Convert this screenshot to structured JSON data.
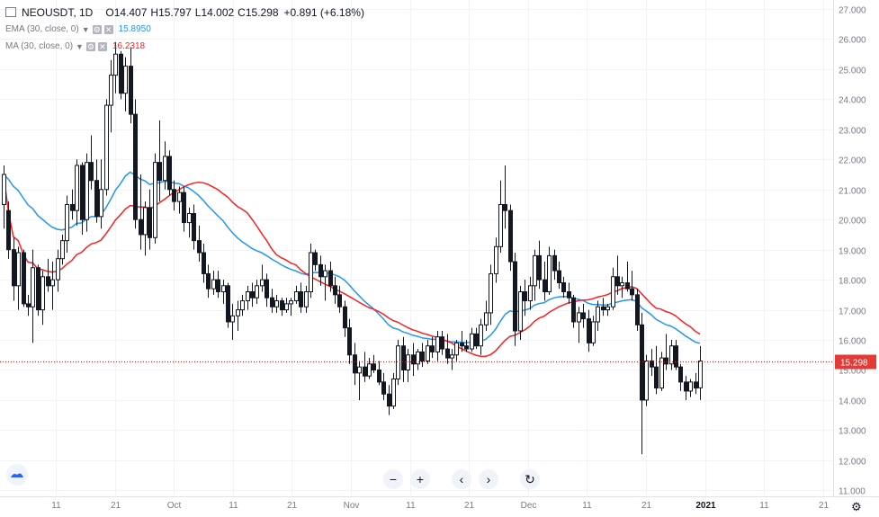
{
  "legend": {
    "symbol": "NEOUSDT, 1D",
    "open_label": "O",
    "open": "14.407",
    "high_label": "H",
    "high": "15.797",
    "low_label": "L",
    "low": "14.002",
    "close_label": "C",
    "close": "15.298",
    "change": "+0.891 (+6.18%)",
    "ema_label": "EMA (30, close, 0)",
    "ema_value": "15.8950",
    "ma_label": "MA (30, close, 0)",
    "ma_value": "16.2318"
  },
  "colors": {
    "ema": "#2196f3",
    "ma": "#ff1e1e",
    "price_line": "#e01010",
    "candle": "#131722",
    "grid": "#f0f3fa",
    "axis_text": "#787b86"
  },
  "price_label": "15.298",
  "nav_icons": [
    "minus-icon",
    "plus-icon",
    "chevron-left-icon",
    "chevron-right-icon",
    "reset-icon"
  ],
  "chart_data": {
    "type": "candlestick",
    "symbol": "NEOUSDT",
    "interval": "1D",
    "y_ticks": [
      "27.000",
      "26.000",
      "25.000",
      "24.000",
      "23.000",
      "22.000",
      "21.000",
      "20.000",
      "19.000",
      "18.000",
      "17.000",
      "16.000",
      "15.000",
      "14.000",
      "13.000",
      "12.000",
      "11.000"
    ],
    "ylim": [
      10.8,
      27.3
    ],
    "x_ticks": [
      "11",
      "21",
      "Oct",
      "11",
      "21",
      "Nov",
      "11",
      "21",
      "Dec",
      "11",
      "21",
      "2021",
      "11",
      "21"
    ],
    "last_price": 15.298,
    "grid": true,
    "candles": [
      {
        "o": 20.5,
        "h": 21.8,
        "l": 19.7,
        "c": 21.5
      },
      {
        "o": 20.3,
        "h": 20.6,
        "l": 18.7,
        "c": 19.0
      },
      {
        "o": 19.0,
        "h": 19.4,
        "l": 17.3,
        "c": 17.8
      },
      {
        "o": 17.8,
        "h": 19.1,
        "l": 17.0,
        "c": 18.9
      },
      {
        "o": 18.9,
        "h": 19.0,
        "l": 17.1,
        "c": 17.2
      },
      {
        "o": 17.2,
        "h": 17.5,
        "l": 16.8,
        "c": 17.1
      },
      {
        "o": 17.1,
        "h": 19.0,
        "l": 15.9,
        "c": 18.4
      },
      {
        "o": 18.4,
        "h": 18.5,
        "l": 16.8,
        "c": 17.0
      },
      {
        "o": 17.0,
        "h": 18.3,
        "l": 16.5,
        "c": 18.1
      },
      {
        "o": 18.1,
        "h": 18.7,
        "l": 17.6,
        "c": 17.8
      },
      {
        "o": 17.8,
        "h": 18.6,
        "l": 17.0,
        "c": 18.0
      },
      {
        "o": 18.0,
        "h": 19.0,
        "l": 17.6,
        "c": 18.7
      },
      {
        "o": 18.7,
        "h": 19.5,
        "l": 18.5,
        "c": 19.3
      },
      {
        "o": 19.3,
        "h": 20.8,
        "l": 18.9,
        "c": 20.5
      },
      {
        "o": 20.5,
        "h": 21.0,
        "l": 20.0,
        "c": 20.3
      },
      {
        "o": 20.3,
        "h": 22.0,
        "l": 19.8,
        "c": 21.8
      },
      {
        "o": 21.8,
        "h": 21.9,
        "l": 19.5,
        "c": 20.0
      },
      {
        "o": 20.0,
        "h": 22.2,
        "l": 19.6,
        "c": 21.9
      },
      {
        "o": 21.9,
        "h": 22.8,
        "l": 21.0,
        "c": 21.3
      },
      {
        "o": 21.3,
        "h": 22.0,
        "l": 19.9,
        "c": 20.1
      },
      {
        "o": 20.1,
        "h": 22.0,
        "l": 19.7,
        "c": 21.0
      },
      {
        "o": 21.0,
        "h": 24.0,
        "l": 20.8,
        "c": 23.8
      },
      {
        "o": 23.8,
        "h": 25.3,
        "l": 22.9,
        "c": 24.8
      },
      {
        "o": 24.8,
        "h": 25.9,
        "l": 24.2,
        "c": 25.5
      },
      {
        "o": 25.5,
        "h": 25.6,
        "l": 24.0,
        "c": 24.2
      },
      {
        "o": 24.2,
        "h": 25.4,
        "l": 23.6,
        "c": 25.1
      },
      {
        "o": 25.1,
        "h": 25.7,
        "l": 23.2,
        "c": 23.5
      },
      {
        "o": 23.5,
        "h": 24.0,
        "l": 19.7,
        "c": 20.0
      },
      {
        "o": 20.0,
        "h": 21.5,
        "l": 19.0,
        "c": 19.5
      },
      {
        "o": 19.5,
        "h": 20.6,
        "l": 18.8,
        "c": 20.4
      },
      {
        "o": 20.4,
        "h": 21.0,
        "l": 19.0,
        "c": 19.4
      },
      {
        "o": 19.4,
        "h": 22.2,
        "l": 19.2,
        "c": 21.9
      },
      {
        "o": 21.9,
        "h": 23.3,
        "l": 20.6,
        "c": 21.3
      },
      {
        "o": 21.3,
        "h": 22.6,
        "l": 21.0,
        "c": 22.1
      },
      {
        "o": 22.1,
        "h": 22.3,
        "l": 20.8,
        "c": 21.0
      },
      {
        "o": 21.0,
        "h": 21.3,
        "l": 20.3,
        "c": 20.6
      },
      {
        "o": 20.6,
        "h": 21.1,
        "l": 20.2,
        "c": 20.9
      },
      {
        "o": 20.9,
        "h": 21.1,
        "l": 19.6,
        "c": 19.9
      },
      {
        "o": 19.9,
        "h": 20.4,
        "l": 19.4,
        "c": 20.2
      },
      {
        "o": 20.2,
        "h": 20.5,
        "l": 19.0,
        "c": 19.3
      },
      {
        "o": 19.3,
        "h": 19.8,
        "l": 18.6,
        "c": 18.9
      },
      {
        "o": 18.9,
        "h": 19.2,
        "l": 17.9,
        "c": 18.2
      },
      {
        "o": 18.2,
        "h": 18.5,
        "l": 17.4,
        "c": 17.7
      },
      {
        "o": 17.7,
        "h": 18.3,
        "l": 17.5,
        "c": 18.0
      },
      {
        "o": 18.0,
        "h": 18.3,
        "l": 17.4,
        "c": 17.6
      },
      {
        "o": 17.6,
        "h": 18.0,
        "l": 17.2,
        "c": 17.8
      },
      {
        "o": 17.8,
        "h": 17.9,
        "l": 16.4,
        "c": 16.6
      },
      {
        "o": 16.6,
        "h": 17.2,
        "l": 16.0,
        "c": 16.8
      },
      {
        "o": 16.8,
        "h": 17.3,
        "l": 16.3,
        "c": 17.0
      },
      {
        "o": 17.0,
        "h": 17.5,
        "l": 16.8,
        "c": 17.3
      },
      {
        "o": 17.3,
        "h": 17.8,
        "l": 17.0,
        "c": 17.6
      },
      {
        "o": 17.6,
        "h": 17.9,
        "l": 17.1,
        "c": 17.4
      },
      {
        "o": 17.4,
        "h": 18.0,
        "l": 17.2,
        "c": 17.8
      },
      {
        "o": 17.8,
        "h": 18.5,
        "l": 17.6,
        "c": 18.0
      },
      {
        "o": 18.0,
        "h": 18.2,
        "l": 17.1,
        "c": 17.4
      },
      {
        "o": 17.4,
        "h": 17.7,
        "l": 16.9,
        "c": 17.1
      },
      {
        "o": 17.1,
        "h": 17.5,
        "l": 16.9,
        "c": 17.3
      },
      {
        "o": 17.3,
        "h": 17.4,
        "l": 16.8,
        "c": 17.0
      },
      {
        "o": 17.0,
        "h": 17.4,
        "l": 16.9,
        "c": 17.2
      },
      {
        "o": 17.2,
        "h": 17.4,
        "l": 16.8,
        "c": 17.3
      },
      {
        "o": 17.3,
        "h": 17.8,
        "l": 17.2,
        "c": 17.6
      },
      {
        "o": 17.6,
        "h": 17.9,
        "l": 16.9,
        "c": 17.1
      },
      {
        "o": 17.1,
        "h": 17.8,
        "l": 16.9,
        "c": 17.6
      },
      {
        "o": 17.6,
        "h": 19.2,
        "l": 17.4,
        "c": 18.9
      },
      {
        "o": 18.9,
        "h": 19.0,
        "l": 18.3,
        "c": 18.5
      },
      {
        "o": 18.5,
        "h": 18.8,
        "l": 17.8,
        "c": 18.1
      },
      {
        "o": 18.1,
        "h": 18.5,
        "l": 17.3,
        "c": 18.3
      },
      {
        "o": 18.3,
        "h": 18.6,
        "l": 17.6,
        "c": 17.8
      },
      {
        "o": 17.8,
        "h": 18.1,
        "l": 17.2,
        "c": 17.5
      },
      {
        "o": 17.5,
        "h": 17.8,
        "l": 16.9,
        "c": 17.1
      },
      {
        "o": 17.1,
        "h": 17.3,
        "l": 16.1,
        "c": 16.4
      },
      {
        "o": 16.4,
        "h": 16.7,
        "l": 15.2,
        "c": 15.5
      },
      {
        "o": 15.5,
        "h": 15.9,
        "l": 14.5,
        "c": 14.9
      },
      {
        "o": 14.9,
        "h": 15.3,
        "l": 14.0,
        "c": 15.1
      },
      {
        "o": 15.1,
        "h": 15.6,
        "l": 14.6,
        "c": 14.8
      },
      {
        "o": 14.8,
        "h": 15.4,
        "l": 14.7,
        "c": 15.2
      },
      {
        "o": 15.2,
        "h": 15.5,
        "l": 14.9,
        "c": 15.0
      },
      {
        "o": 15.0,
        "h": 15.3,
        "l": 14.5,
        "c": 14.6
      },
      {
        "o": 14.6,
        "h": 14.9,
        "l": 14.0,
        "c": 14.2
      },
      {
        "o": 14.2,
        "h": 14.5,
        "l": 13.5,
        "c": 13.8
      },
      {
        "o": 13.8,
        "h": 14.9,
        "l": 13.7,
        "c": 14.7
      },
      {
        "o": 14.7,
        "h": 16.0,
        "l": 14.5,
        "c": 15.8
      },
      {
        "o": 15.8,
        "h": 16.1,
        "l": 14.6,
        "c": 15.0
      },
      {
        "o": 15.0,
        "h": 15.7,
        "l": 14.6,
        "c": 15.5
      },
      {
        "o": 15.5,
        "h": 15.9,
        "l": 14.8,
        "c": 15.2
      },
      {
        "o": 15.2,
        "h": 15.7,
        "l": 15.0,
        "c": 15.6
      },
      {
        "o": 15.6,
        "h": 15.9,
        "l": 15.1,
        "c": 15.3
      },
      {
        "o": 15.3,
        "h": 16.0,
        "l": 15.2,
        "c": 15.8
      },
      {
        "o": 15.8,
        "h": 16.1,
        "l": 15.4,
        "c": 15.6
      },
      {
        "o": 15.6,
        "h": 16.3,
        "l": 15.3,
        "c": 16.1
      },
      {
        "o": 16.1,
        "h": 16.3,
        "l": 15.5,
        "c": 15.7
      },
      {
        "o": 15.7,
        "h": 16.2,
        "l": 15.2,
        "c": 15.4
      },
      {
        "o": 15.4,
        "h": 15.7,
        "l": 15.0,
        "c": 15.5
      },
      {
        "o": 15.5,
        "h": 16.0,
        "l": 15.3,
        "c": 15.9
      },
      {
        "o": 15.9,
        "h": 16.3,
        "l": 15.6,
        "c": 15.8
      },
      {
        "o": 15.8,
        "h": 16.0,
        "l": 15.6,
        "c": 15.7
      },
      {
        "o": 15.7,
        "h": 16.4,
        "l": 15.6,
        "c": 16.2
      },
      {
        "o": 16.2,
        "h": 16.4,
        "l": 15.7,
        "c": 15.8
      },
      {
        "o": 15.8,
        "h": 16.7,
        "l": 15.5,
        "c": 16.5
      },
      {
        "o": 16.5,
        "h": 17.3,
        "l": 16.3,
        "c": 16.9
      },
      {
        "o": 16.9,
        "h": 18.5,
        "l": 16.5,
        "c": 18.2
      },
      {
        "o": 18.2,
        "h": 19.4,
        "l": 17.9,
        "c": 19.1
      },
      {
        "o": 19.1,
        "h": 21.3,
        "l": 18.9,
        "c": 20.5
      },
      {
        "o": 20.5,
        "h": 21.8,
        "l": 19.7,
        "c": 20.3
      },
      {
        "o": 20.3,
        "h": 20.5,
        "l": 18.3,
        "c": 18.6
      },
      {
        "o": 18.6,
        "h": 18.9,
        "l": 15.8,
        "c": 16.3
      },
      {
        "o": 16.3,
        "h": 17.8,
        "l": 16.0,
        "c": 17.6
      },
      {
        "o": 17.6,
        "h": 18.0,
        "l": 16.8,
        "c": 17.3
      },
      {
        "o": 17.3,
        "h": 18.1,
        "l": 17.0,
        "c": 17.8
      },
      {
        "o": 17.8,
        "h": 19.0,
        "l": 17.3,
        "c": 18.8
      },
      {
        "o": 18.8,
        "h": 19.3,
        "l": 17.7,
        "c": 18.0
      },
      {
        "o": 18.0,
        "h": 18.6,
        "l": 17.3,
        "c": 17.6
      },
      {
        "o": 17.6,
        "h": 19.1,
        "l": 17.5,
        "c": 18.8
      },
      {
        "o": 18.8,
        "h": 19.0,
        "l": 18.0,
        "c": 18.3
      },
      {
        "o": 18.3,
        "h": 18.6,
        "l": 17.7,
        "c": 17.9
      },
      {
        "o": 17.9,
        "h": 18.1,
        "l": 17.4,
        "c": 17.6
      },
      {
        "o": 17.6,
        "h": 17.9,
        "l": 17.2,
        "c": 17.4
      },
      {
        "o": 17.4,
        "h": 17.5,
        "l": 16.4,
        "c": 16.6
      },
      {
        "o": 16.6,
        "h": 17.1,
        "l": 15.9,
        "c": 16.9
      },
      {
        "o": 16.9,
        "h": 17.2,
        "l": 16.4,
        "c": 16.7
      },
      {
        "o": 16.7,
        "h": 17.0,
        "l": 15.6,
        "c": 15.9
      },
      {
        "o": 15.9,
        "h": 16.8,
        "l": 15.8,
        "c": 16.6
      },
      {
        "o": 16.6,
        "h": 17.3,
        "l": 16.3,
        "c": 17.1
      },
      {
        "o": 17.1,
        "h": 17.4,
        "l": 16.8,
        "c": 17.0
      },
      {
        "o": 17.0,
        "h": 17.2,
        "l": 16.8,
        "c": 17.1
      },
      {
        "o": 17.1,
        "h": 18.4,
        "l": 17.0,
        "c": 18.1
      },
      {
        "o": 18.1,
        "h": 18.8,
        "l": 17.5,
        "c": 17.8
      },
      {
        "o": 17.8,
        "h": 18.1,
        "l": 17.4,
        "c": 17.9
      },
      {
        "o": 17.9,
        "h": 18.6,
        "l": 17.6,
        "c": 17.7
      },
      {
        "o": 17.7,
        "h": 18.3,
        "l": 17.3,
        "c": 17.5
      },
      {
        "o": 17.5,
        "h": 17.7,
        "l": 16.3,
        "c": 16.5
      },
      {
        "o": 16.5,
        "h": 16.9,
        "l": 12.2,
        "c": 14.0
      },
      {
        "o": 14.0,
        "h": 15.5,
        "l": 13.8,
        "c": 15.3
      },
      {
        "o": 15.3,
        "h": 15.7,
        "l": 14.8,
        "c": 15.1
      },
      {
        "o": 15.1,
        "h": 15.8,
        "l": 14.2,
        "c": 14.4
      },
      {
        "o": 14.4,
        "h": 15.6,
        "l": 14.3,
        "c": 15.4
      },
      {
        "o": 15.4,
        "h": 16.2,
        "l": 15.0,
        "c": 15.2
      },
      {
        "o": 15.2,
        "h": 16.0,
        "l": 15.0,
        "c": 15.8
      },
      {
        "o": 15.8,
        "h": 16.0,
        "l": 15.0,
        "c": 15.1
      },
      {
        "o": 15.1,
        "h": 15.2,
        "l": 14.3,
        "c": 14.6
      },
      {
        "o": 14.6,
        "h": 14.8,
        "l": 14.0,
        "c": 14.3
      },
      {
        "o": 14.3,
        "h": 14.7,
        "l": 14.1,
        "c": 14.6
      },
      {
        "o": 14.6,
        "h": 14.9,
        "l": 14.2,
        "c": 14.4
      },
      {
        "o": 14.407,
        "h": 15.797,
        "l": 14.002,
        "c": 15.298
      }
    ],
    "series": [
      {
        "name": "EMA (30, close, 0)",
        "color": "#2196f3",
        "last_value": 15.895
      },
      {
        "name": "MA (30, close, 0)",
        "color": "#ff1e1e",
        "last_value": 16.2318
      }
    ]
  }
}
